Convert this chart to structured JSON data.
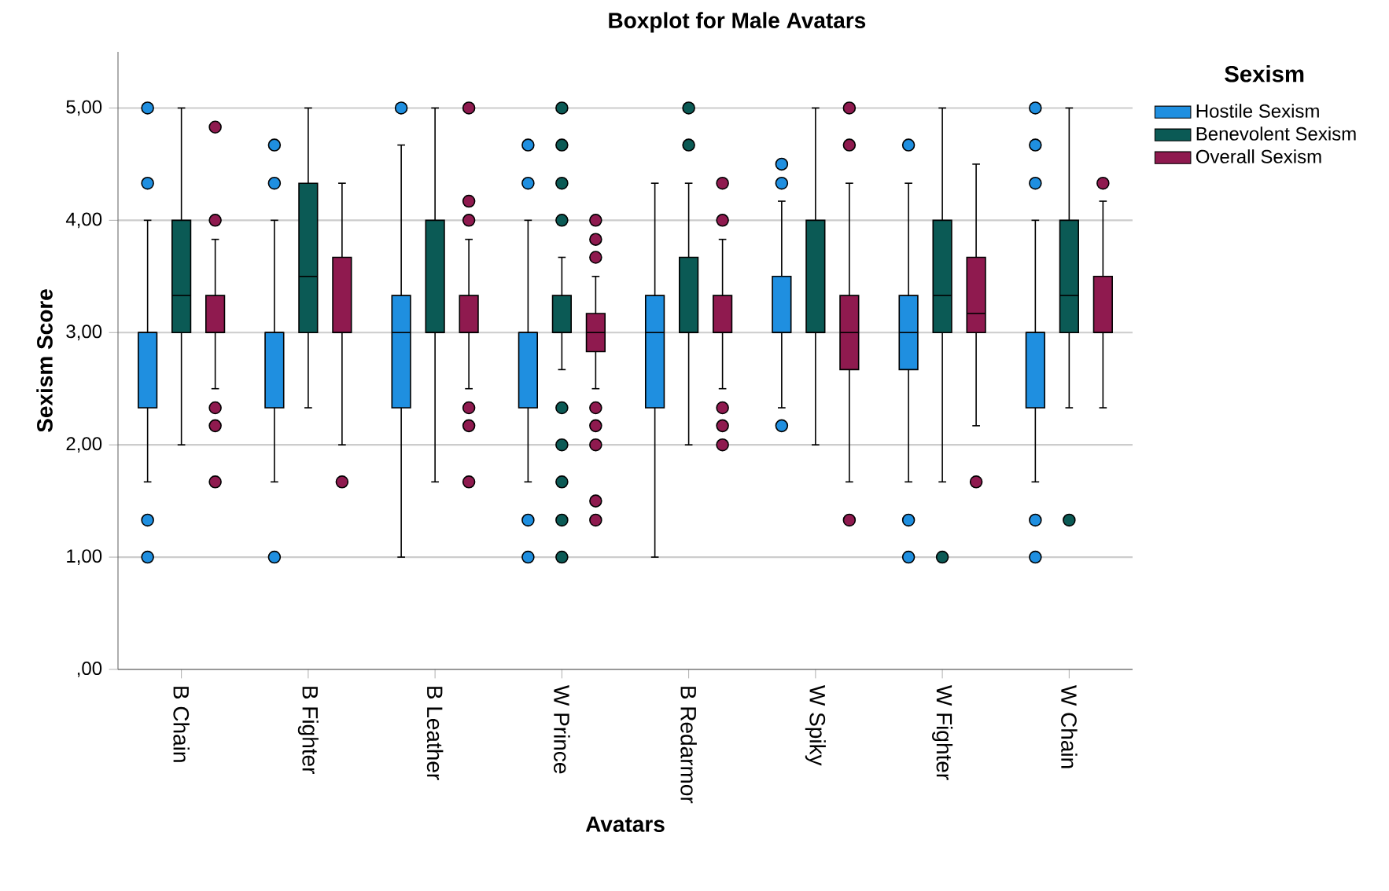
{
  "chart_data": {
    "type": "box",
    "title": "Boxplot for Male Avatars",
    "xlabel": "Avatars",
    "ylabel": "Sexism Score",
    "legend_title": "Sexism",
    "categories": [
      "B Chain",
      "B Fighter",
      "B Leather",
      "W Prince",
      "B Redarmor",
      "W Spiky",
      "W Fighter",
      "W Chain"
    ],
    "ylim": [
      0,
      5.5
    ],
    "yticks": [
      {
        "value": 0,
        "label": ",00"
      },
      {
        "value": 1,
        "label": "1,00"
      },
      {
        "value": 2,
        "label": "2,00"
      },
      {
        "value": 3,
        "label": "3,00"
      },
      {
        "value": 4,
        "label": "4,00"
      },
      {
        "value": 5,
        "label": "5,00"
      }
    ],
    "grid": "y",
    "legend": "right",
    "series": [
      {
        "name": "Hostile Sexism",
        "color": "#1f8fe0",
        "boxes": [
          {
            "low": 1.67,
            "q1": 2.33,
            "median": 3.0,
            "q3": 3.0,
            "high": 4.0,
            "outliers": [
              5.0,
              4.33,
              1.33,
              1.0
            ]
          },
          {
            "low": 1.67,
            "q1": 2.33,
            "median": 3.0,
            "q3": 3.0,
            "high": 4.0,
            "outliers": [
              4.67,
              4.33,
              1.0
            ]
          },
          {
            "low": 1.0,
            "q1": 2.33,
            "median": 3.0,
            "q3": 3.33,
            "high": 4.67,
            "outliers": [
              5.0
            ]
          },
          {
            "low": 1.67,
            "q1": 2.33,
            "median": 3.0,
            "q3": 3.0,
            "high": 4.0,
            "outliers": [
              4.67,
              4.33,
              1.33,
              1.0
            ]
          },
          {
            "low": 1.0,
            "q1": 2.33,
            "median": 3.0,
            "q3": 3.33,
            "high": 4.33
          },
          {
            "low": 2.33,
            "q1": 3.0,
            "median": 3.0,
            "q3": 3.5,
            "high": 4.17,
            "outliers": [
              4.5,
              4.33,
              2.17
            ]
          },
          {
            "low": 1.67,
            "q1": 2.67,
            "median": 3.0,
            "q3": 3.33,
            "high": 4.33,
            "outliers": [
              4.67,
              1.33,
              1.0
            ]
          },
          {
            "low": 1.67,
            "q1": 2.33,
            "median": 3.0,
            "q3": 3.0,
            "high": 4.0,
            "outliers": [
              5.0,
              4.67,
              4.33,
              1.33,
              1.0
            ]
          }
        ]
      },
      {
        "name": "Benevolent Sexism",
        "color": "#0b5a55",
        "boxes": [
          {
            "low": 2.0,
            "q1": 3.0,
            "median": 3.33,
            "q3": 4.0,
            "high": 5.0
          },
          {
            "low": 2.33,
            "q1": 3.0,
            "median": 3.5,
            "q3": 4.33,
            "high": 5.0
          },
          {
            "low": 1.67,
            "q1": 3.0,
            "median": 3.0,
            "q3": 4.0,
            "high": 5.0
          },
          {
            "low": 2.67,
            "q1": 3.0,
            "median": 3.0,
            "q3": 3.33,
            "high": 3.67,
            "outliers": [
              5.0,
              4.67,
              4.33,
              4.0,
              2.33,
              2.0,
              1.67,
              1.33,
              1.0
            ]
          },
          {
            "low": 2.0,
            "q1": 3.0,
            "median": 3.0,
            "q3": 3.67,
            "high": 4.33,
            "outliers": [
              5.0,
              4.67
            ]
          },
          {
            "low": 2.0,
            "q1": 3.0,
            "median": 3.0,
            "q3": 4.0,
            "high": 5.0
          },
          {
            "low": 1.67,
            "q1": 3.0,
            "median": 3.33,
            "q3": 4.0,
            "high": 5.0,
            "outliers": [
              1.0
            ]
          },
          {
            "low": 2.33,
            "q1": 3.0,
            "median": 3.33,
            "q3": 4.0,
            "high": 5.0,
            "outliers": [
              1.33
            ]
          }
        ]
      },
      {
        "name": "Overall Sexism",
        "color": "#8f1a4f",
        "boxes": [
          {
            "low": 2.5,
            "q1": 3.0,
            "median": 3.0,
            "q3": 3.33,
            "high": 3.83,
            "outliers": [
              4.83,
              4.0,
              2.33,
              2.17,
              1.67
            ]
          },
          {
            "low": 2.0,
            "q1": 3.0,
            "median": 3.0,
            "q3": 3.67,
            "high": 4.33,
            "outliers": [
              1.67
            ]
          },
          {
            "low": 2.5,
            "q1": 3.0,
            "median": 3.0,
            "q3": 3.33,
            "high": 3.83,
            "outliers": [
              5.0,
              4.17,
              4.0,
              2.33,
              2.17,
              1.67
            ]
          },
          {
            "low": 2.5,
            "q1": 2.83,
            "median": 3.0,
            "q3": 3.17,
            "high": 3.5,
            "outliers": [
              4.0,
              3.83,
              3.67,
              2.33,
              2.17,
              2.0,
              1.5,
              1.33
            ]
          },
          {
            "low": 2.5,
            "q1": 3.0,
            "median": 3.0,
            "q3": 3.33,
            "high": 3.83,
            "outliers": [
              4.33,
              4.0,
              2.33,
              2.17,
              2.0
            ]
          },
          {
            "low": 1.67,
            "q1": 2.67,
            "median": 3.0,
            "q3": 3.33,
            "high": 4.33,
            "outliers": [
              5.0,
              4.67,
              1.33
            ]
          },
          {
            "low": 2.17,
            "q1": 3.0,
            "median": 3.17,
            "q3": 3.67,
            "high": 4.5,
            "outliers": [
              1.67
            ]
          },
          {
            "low": 2.33,
            "q1": 3.0,
            "median": 3.0,
            "q3": 3.5,
            "high": 4.17,
            "outliers": [
              4.33
            ]
          }
        ]
      }
    ]
  }
}
